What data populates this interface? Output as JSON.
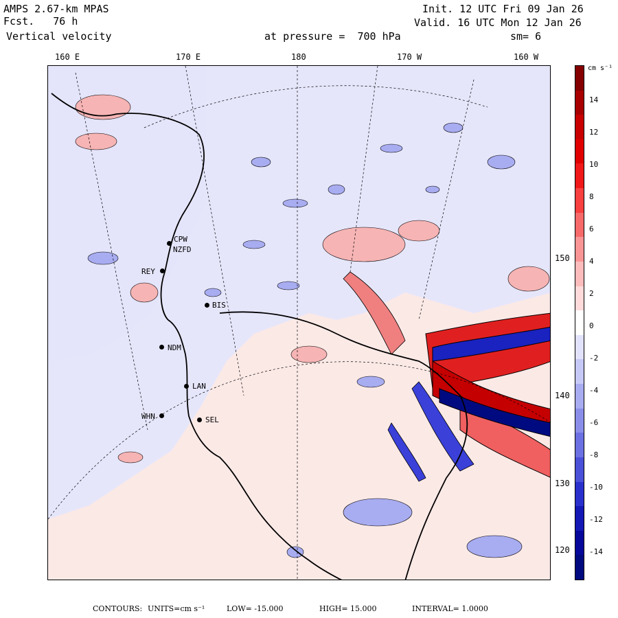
{
  "header": {
    "model": "AMPS 2.67-km MPAS",
    "fcst_label": "Fcst.",
    "fcst_value": "76 h",
    "field": "Vertical velocity",
    "init": "Init. 12 UTC Fri 09 Jan 26",
    "valid": "Valid. 16 UTC Mon 12 Jan 26",
    "pressure_label": "at pressure =",
    "pressure_value": "700 hPa",
    "smoothing": "sm= 6"
  },
  "map": {
    "lon_labels": [
      "160 E",
      "170 E",
      "180",
      "170 W",
      "160 W"
    ],
    "lat_labels": [
      "150 W",
      "140 W",
      "130 W",
      "120 W"
    ],
    "stations": [
      "CPW",
      "NZFD",
      "REY",
      "BIS",
      "NDM",
      "LAN",
      "WHN",
      "SEL"
    ],
    "colors": {
      "positive": "#e8393a",
      "negative": "#2f3fd9",
      "coast": "#000000"
    }
  },
  "colorbar": {
    "units": "cm s⁻¹",
    "tick_labels": [
      "14",
      "12",
      "10",
      "8",
      "6",
      "4",
      "2",
      "0",
      "-2",
      "-4",
      "-6",
      "-8",
      "-10",
      "-12",
      "-14"
    ],
    "colors": [
      "#840000",
      "#a80000",
      "#c80000",
      "#e00000",
      "#f01818",
      "#f84040",
      "#f86a6a",
      "#fa9595",
      "#fcbcbc",
      "#fedada",
      "#ffffff",
      "#e2e2fc",
      "#c6c8f6",
      "#a8acf0",
      "#8a8ee8",
      "#6b70e2",
      "#4a50d8",
      "#2a30cc",
      "#1418b4",
      "#05089a",
      "#000a80"
    ]
  },
  "footer": {
    "contours_label": "CONTOURS:",
    "units": "UNITS=cm s⁻¹",
    "low": "LOW= -15.000",
    "high": "HIGH= 15.000",
    "interval": "INTERVAL= 1.0000"
  }
}
